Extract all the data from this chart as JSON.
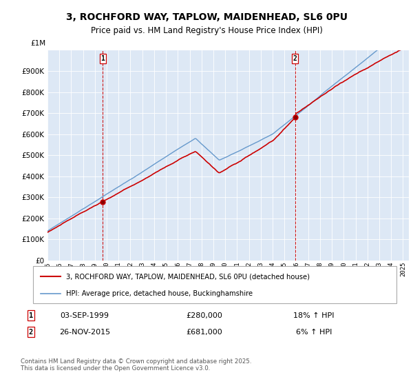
{
  "title1": "3, ROCHFORD WAY, TAPLOW, MAIDENHEAD, SL6 0PU",
  "title2": "Price paid vs. HM Land Registry's House Price Index (HPI)",
  "legend_line1": "3, ROCHFORD WAY, TAPLOW, MAIDENHEAD, SL6 0PU (detached house)",
  "legend_line2": "HPI: Average price, detached house, Buckinghamshire",
  "sale1_label": "1",
  "sale1_date": "03-SEP-1999",
  "sale1_price": "£280,000",
  "sale1_hpi": "18% ↑ HPI",
  "sale2_label": "2",
  "sale2_date": "26-NOV-2015",
  "sale2_price": "£681,000",
  "sale2_hpi": "6% ↑ HPI",
  "footer": "Contains HM Land Registry data © Crown copyright and database right 2025.\nThis data is licensed under the Open Government Licence v3.0.",
  "house_color": "#cc0000",
  "hpi_color": "#6699cc",
  "hpi_fill_color": "#dde8f5",
  "vline_color": "#cc0000",
  "ylim": [
    0,
    1000000
  ],
  "yticks": [
    0,
    100000,
    200000,
    300000,
    400000,
    500000,
    600000,
    700000,
    800000,
    900000
  ],
  "sale1_year": 1999.67,
  "sale2_year": 2015.9,
  "xmin": 1995,
  "xmax": 2025.5
}
